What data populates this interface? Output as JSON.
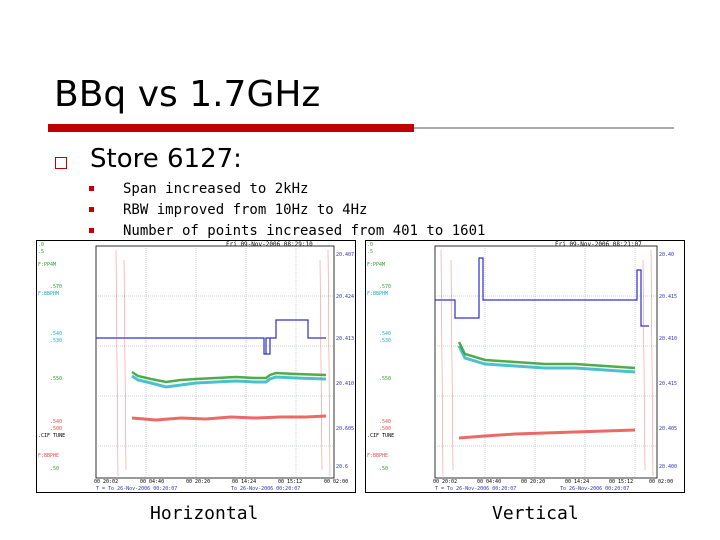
{
  "slide": {
    "title": "BBq vs 1.7GHz",
    "main_bullet": "Store 6127:",
    "sub_bullets": [
      "Span increased to 2kHz",
      "RBW improved from 10Hz to 4Hz",
      "Number of points increased from 401 to 1601"
    ]
  },
  "colors": {
    "accent_red": "#c00000",
    "trace_blue": "#3030c8",
    "trace_green": "#2ca02c",
    "trace_cyan": "#20b0c0",
    "trace_red": "#e8504c"
  },
  "plots": [
    {
      "caption": "Horizontal",
      "header": "Fri 09-Nov-2006 08:29:10",
      "x_ticks": [
        "00 20:02",
        "00 04:40",
        "00 20:20",
        "00 14:24",
        "00 15:12",
        "00 02:00"
      ],
      "footer_left": "T = To 26-Nov-2006 00:20:07",
      "footer_right": "To 26-Nov-2006 00:20:07",
      "left_labels": [
        ".0",
        ".5",
        "F:PP4M",
        ".570",
        "F:BBPHM",
        ".540",
        ".530",
        ".550",
        ".540",
        ".500",
        ".CIF TUNE",
        "F:BBPHE",
        ".50"
      ],
      "right_labels": [
        "20.407",
        "20.424",
        "20.413",
        "20.410",
        "20.605",
        "20.6"
      ]
    },
    {
      "caption": "Vertical",
      "header": "Fri 09-Nov-2006 08:21:07",
      "x_ticks": [
        "00 20:02",
        "00 04:40",
        "00 20:20",
        "00 14:24",
        "00 15:12",
        "00 02:00"
      ],
      "footer_left": "T = To 26-Nov-2006 00:20:07",
      "footer_right": "To 26-Nov-2006 00:20:07",
      "left_labels": [
        ".0",
        ".5",
        "F:PP4M",
        ".570",
        "F:BBPHM",
        ".540",
        ".530",
        ".550",
        ".540",
        ".500",
        ".CIF TUNE",
        "F:BBPHE",
        ".50"
      ],
      "right_labels": [
        "20.40",
        "20.415",
        "20.410",
        "20.415",
        "20.405",
        "20.400"
      ]
    }
  ]
}
